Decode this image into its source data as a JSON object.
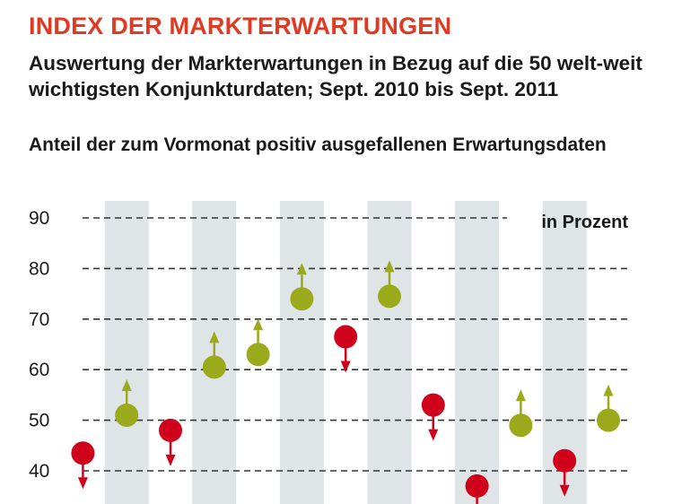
{
  "header": {
    "title": "INDEX DER MARKTERWARTUNGEN",
    "subtitle": "Auswertung der Markterwartungen in Bezug auf die 50 welt-weit wichtigsten Konjunkturdaten; Sept. 2010 bis Sept. 2011",
    "caption": "Anteil der zum Vormonat positiv ausgefallenen Erwartungsdaten"
  },
  "colors": {
    "up": "#9aaa1b",
    "down": "#d0021b",
    "band": "#dfe4e6",
    "grid": "#333333",
    "title": "#e03a23"
  },
  "chart_data": {
    "type": "scatter",
    "title": "INDEX DER MARKTERWARTUNGEN",
    "subtitle": "Auswertung der Markterwartungen in Bezug auf die 50 welt-weit wichtigsten Konjunkturdaten; Sept. 2010 bis Sept. 2011",
    "ylabel": "Anteil der zum Vormonat positiv ausgefallenen Erwartungsdaten",
    "unit_label": "in Prozent",
    "ylim": [
      35,
      93
    ],
    "yticks": [
      40,
      50,
      60,
      70,
      80,
      90
    ],
    "grid": true,
    "x": [
      1,
      2,
      3,
      4,
      5,
      6,
      7,
      8,
      9,
      10,
      11,
      12,
      13
    ],
    "values": [
      43.5,
      51.0,
      48.0,
      60.5,
      63.0,
      74.0,
      66.5,
      74.5,
      53.0,
      37.0,
      49.0,
      42.0,
      50.0
    ],
    "direction": [
      "down",
      "up",
      "down",
      "up",
      "up",
      "up",
      "down",
      "up",
      "down",
      "down",
      "up",
      "down",
      "up"
    ]
  }
}
